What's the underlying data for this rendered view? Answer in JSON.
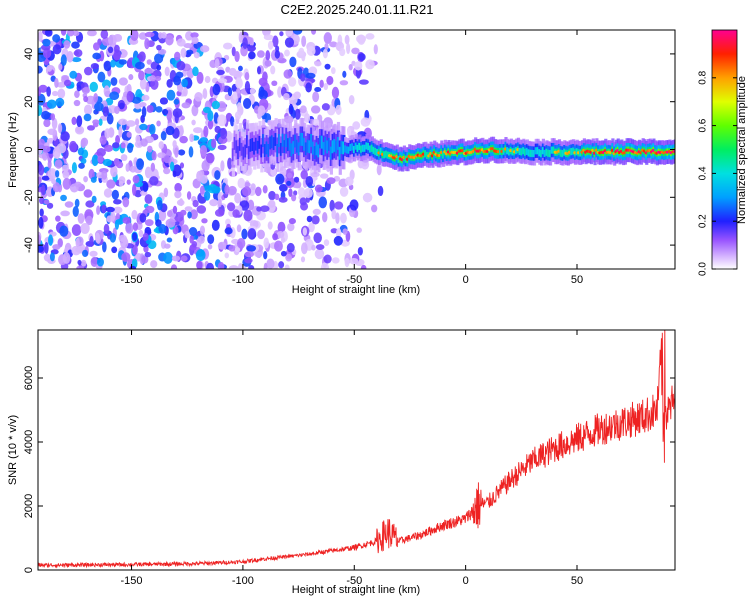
{
  "chart_data": [
    {
      "type": "heatmap",
      "title": "C2E2.2025.240.01.11.R21",
      "xlabel": "Height of straight line (km)",
      "ylabel": "Frequency (Hz)",
      "xlim": [
        -192,
        94
      ],
      "ylim": [
        -50,
        50
      ],
      "xticks": [
        -150,
        -100,
        -50,
        0,
        50
      ],
      "yticks": [
        -40,
        -20,
        0,
        20,
        40
      ],
      "colorbar": {
        "label": "Normalized spectral amplitude",
        "range": [
          0,
          1
        ],
        "ticks": [
          0.0,
          0.2,
          0.4,
          0.6,
          0.8
        ],
        "tick_labels": [
          "0.0",
          "0.2",
          "0.4",
          "0.6",
          "0.8"
        ]
      },
      "ridge": {
        "description_x": [
          -105,
          -90,
          -75,
          -60,
          -45,
          -30,
          -15,
          0,
          10,
          30,
          60,
          90
        ],
        "frequency": [
          0,
          2,
          2,
          0,
          1,
          -4,
          -2,
          -1,
          0,
          -1,
          -1,
          -1
        ],
        "peak_amplitude": [
          0.25,
          0.4,
          0.45,
          0.5,
          0.7,
          0.85,
          0.85,
          0.9,
          0.85,
          0.65,
          0.9,
          0.95
        ]
      },
      "noise_region_x": [
        -192,
        -75
      ],
      "noise_amplitude": [
        0.05,
        0.35
      ]
    },
    {
      "type": "line",
      "xlabel": "Height of straight line (km)",
      "ylabel": "SNR (10 * v/v)",
      "xlim": [
        -192,
        94
      ],
      "ylim": [
        0,
        7500
      ],
      "xticks": [
        -150,
        -100,
        -50,
        0,
        50
      ],
      "yticks": [
        0,
        2000,
        4000,
        6000
      ],
      "series": [
        {
          "name": "SNR",
          "color": "#ee2222",
          "x": [
            -192,
            -150,
            -120,
            -100,
            -90,
            -80,
            -70,
            -60,
            -50,
            -40,
            -35,
            -30,
            -20,
            -10,
            0,
            5,
            10,
            20,
            30,
            40,
            50,
            60,
            70,
            80,
            86,
            88,
            90,
            94
          ],
          "y": [
            150,
            170,
            200,
            260,
            350,
            420,
            500,
            600,
            700,
            900,
            1200,
            900,
            1100,
            1400,
            1600,
            2000,
            2100,
            2800,
            3400,
            3800,
            4100,
            4400,
            4600,
            4800,
            5000,
            6800,
            4800,
            5400
          ]
        }
      ]
    }
  ]
}
